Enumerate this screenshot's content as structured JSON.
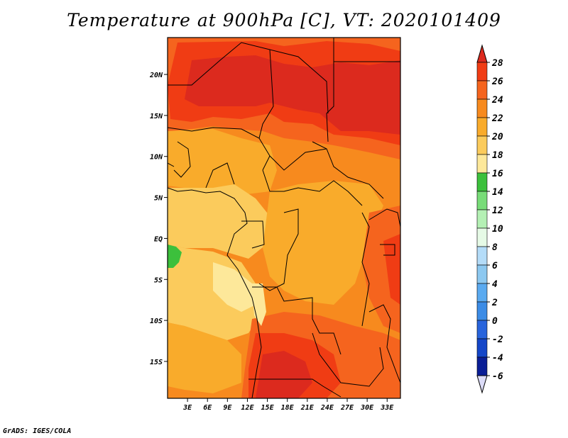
{
  "title": "Temperature at 900hPa [C], VT: 2020101409",
  "credit": "GrADS: IGES/COLA",
  "map": {
    "lon_range": [
      0,
      35
    ],
    "lat_range": [
      -19.5,
      24.5
    ],
    "lon_ticks": [
      "3E",
      "6E",
      "9E",
      "12E",
      "15E",
      "18E",
      "21E",
      "24E",
      "27E",
      "30E",
      "33E"
    ],
    "lon_tick_values": [
      3,
      6,
      9,
      12,
      15,
      18,
      21,
      24,
      27,
      30,
      33
    ],
    "lat_ticks": [
      "20N",
      "15N",
      "10N",
      "5N",
      "EQ",
      "5S",
      "10S",
      "15S"
    ],
    "lat_tick_values": [
      20,
      15,
      10,
      5,
      0,
      -5,
      -10,
      -15
    ]
  },
  "colorbar": {
    "labels": [
      "28",
      "26",
      "24",
      "22",
      "20",
      "18",
      "16",
      "14",
      "12",
      "10",
      "8",
      "6",
      "4",
      "2",
      "0",
      "-2",
      "-4",
      "-6"
    ],
    "colors": [
      "#dc2a1e",
      "#f03c14",
      "#f5641e",
      "#f78a1e",
      "#f9ab2b",
      "#fbcb5c",
      "#fde89a",
      "#3cc03c",
      "#78dc78",
      "#b4f0b4",
      "#e6fae6",
      "#b4dcf8",
      "#8cc8f0",
      "#5aaaf0",
      "#3c8ce6",
      "#2864dc",
      "#1446c8",
      "#0a1e96",
      "#000064"
    ],
    "top_color": "#dc2a1e",
    "bottom_color": "#dcdcf8"
  }
}
